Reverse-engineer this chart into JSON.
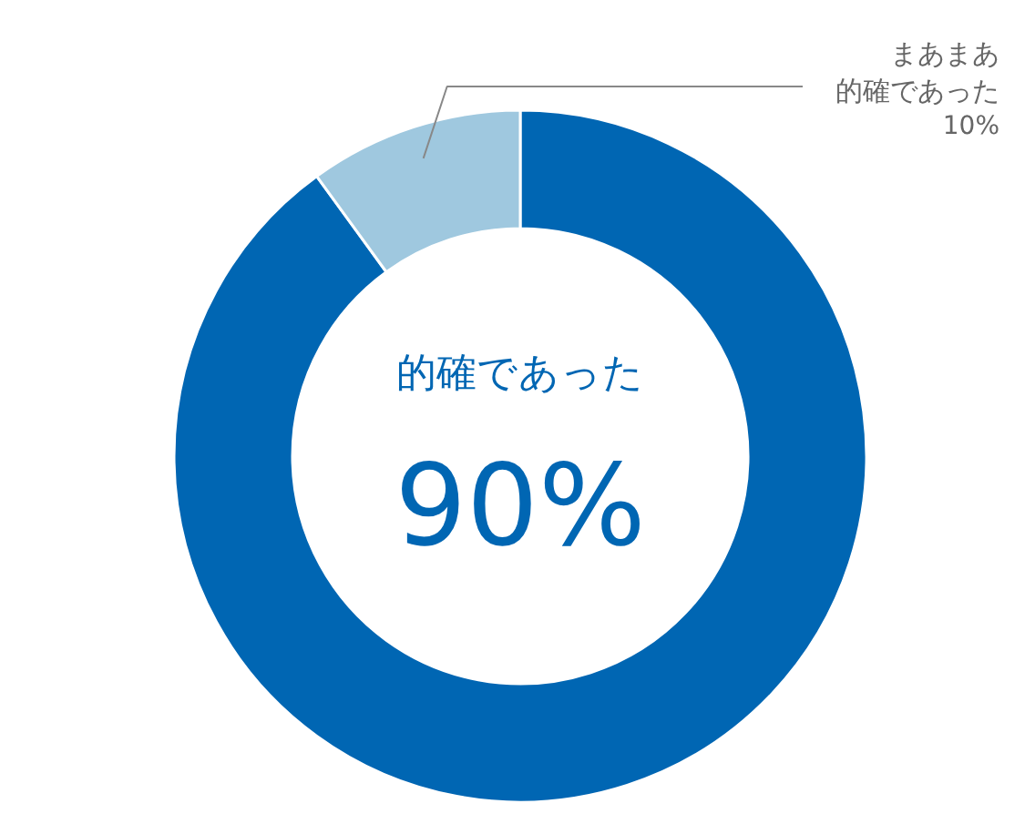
{
  "chart_data": {
    "type": "donut",
    "categories": [
      "的確であった",
      "まあまあ的確であった"
    ],
    "values": [
      90,
      10
    ],
    "colors": [
      "#0066b3",
      "#9fc8df"
    ],
    "value_labels": [
      "90%",
      "10%"
    ]
  }
}
